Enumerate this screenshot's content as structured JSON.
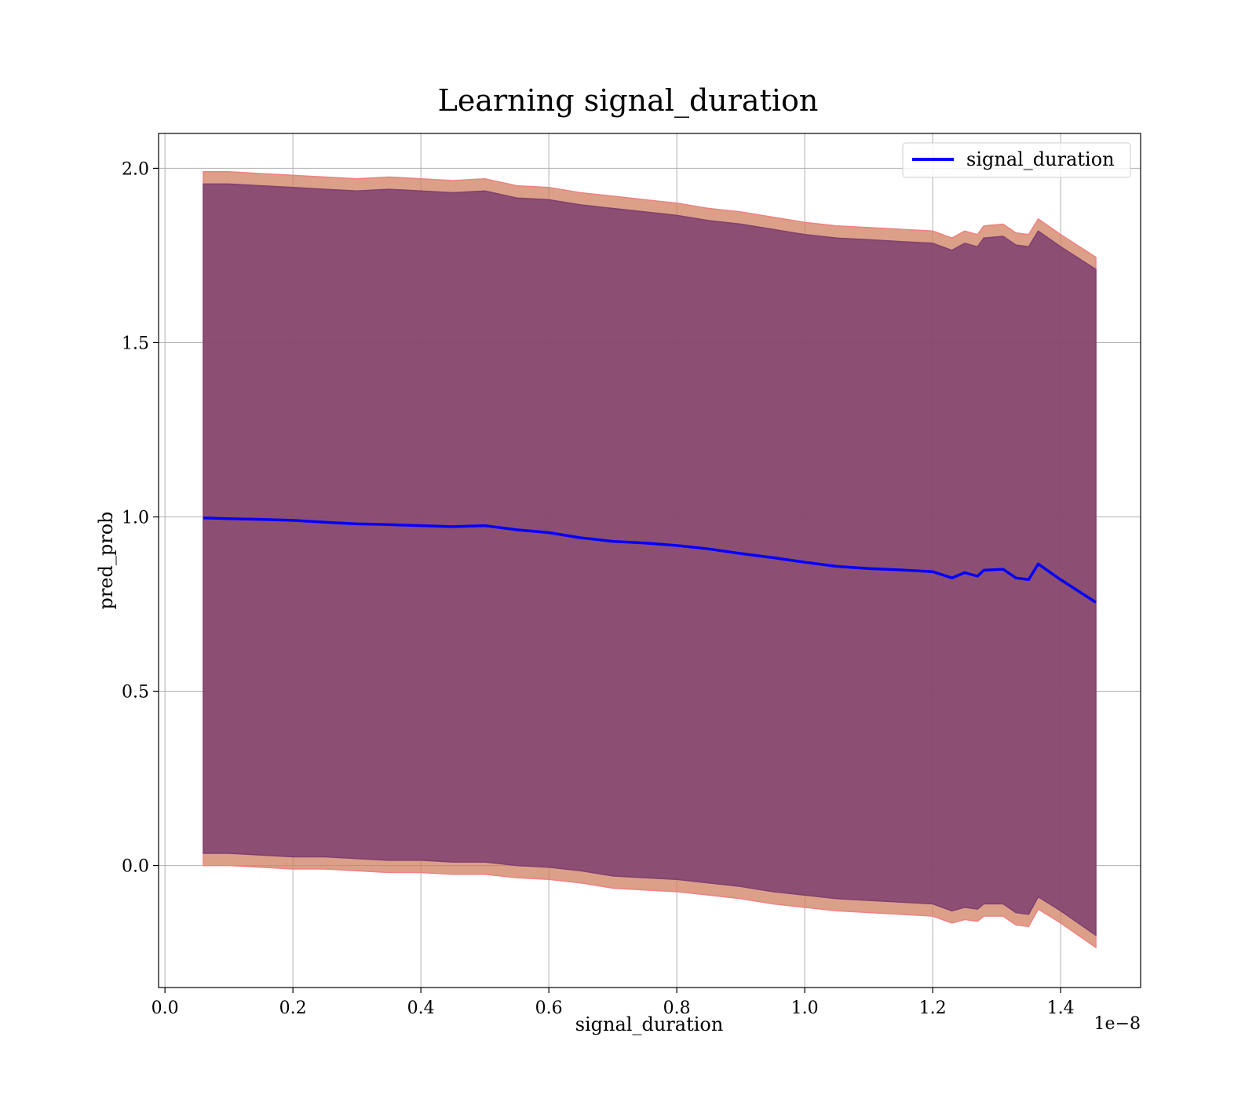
{
  "chart_data": {
    "type": "line",
    "title": "Learning signal_duration",
    "xlabel": "signal_duration",
    "ylabel": "pred_prob",
    "x_offset_label": "1e−8",
    "xlim": [
      -0.01,
      1.525
    ],
    "ylim": [
      -0.35,
      2.1
    ],
    "x_ticks": [
      0.0,
      0.2,
      0.4,
      0.6,
      0.8,
      1.0,
      1.2,
      1.4
    ],
    "x_tick_labels": [
      "0.0",
      "0.2",
      "0.4",
      "0.6",
      "0.8",
      "1.0",
      "1.2",
      "1.4"
    ],
    "y_ticks": [
      0.0,
      0.5,
      1.0,
      1.5,
      2.0
    ],
    "y_tick_labels": [
      "0.0",
      "0.5",
      "1.0",
      "1.5",
      "2.0"
    ],
    "grid": true,
    "legend_position": "top-right",
    "x": [
      0.06,
      0.1,
      0.15,
      0.2,
      0.25,
      0.3,
      0.35,
      0.4,
      0.45,
      0.5,
      0.55,
      0.6,
      0.65,
      0.7,
      0.75,
      0.8,
      0.85,
      0.9,
      0.95,
      1.0,
      1.05,
      1.1,
      1.15,
      1.2,
      1.23,
      1.25,
      1.27,
      1.28,
      1.31,
      1.33,
      1.35,
      1.365,
      1.4,
      1.455
    ],
    "series": [
      {
        "name": "signal_duration",
        "color": "#0000ff",
        "values": [
          0.997,
          0.995,
          0.993,
          0.99,
          0.985,
          0.98,
          0.978,
          0.975,
          0.972,
          0.975,
          0.963,
          0.955,
          0.94,
          0.93,
          0.925,
          0.918,
          0.908,
          0.895,
          0.883,
          0.87,
          0.858,
          0.852,
          0.848,
          0.843,
          0.825,
          0.84,
          0.83,
          0.847,
          0.85,
          0.825,
          0.82,
          0.865,
          0.82,
          0.755
        ]
      }
    ],
    "bands": [
      {
        "color": "#d08060",
        "edge_color": "#f08080",
        "upper": [
          1.99,
          1.99,
          1.985,
          1.98,
          1.975,
          1.97,
          1.975,
          1.97,
          1.965,
          1.97,
          1.95,
          1.945,
          1.93,
          1.92,
          1.91,
          1.9,
          1.885,
          1.875,
          1.86,
          1.845,
          1.835,
          1.83,
          1.825,
          1.82,
          1.8,
          1.82,
          1.81,
          1.835,
          1.84,
          1.815,
          1.81,
          1.855,
          1.81,
          1.745
        ],
        "lower": [
          0.0,
          0.0,
          -0.005,
          -0.01,
          -0.01,
          -0.015,
          -0.02,
          -0.02,
          -0.025,
          -0.025,
          -0.035,
          -0.04,
          -0.05,
          -0.065,
          -0.07,
          -0.075,
          -0.085,
          -0.095,
          -0.11,
          -0.12,
          -0.13,
          -0.135,
          -0.14,
          -0.145,
          -0.165,
          -0.155,
          -0.16,
          -0.145,
          -0.145,
          -0.17,
          -0.175,
          -0.125,
          -0.165,
          -0.235
        ]
      },
      {
        "color": "#7f4070",
        "edge_color": "#7f4070",
        "upper": [
          1.955,
          1.955,
          1.95,
          1.945,
          1.94,
          1.935,
          1.94,
          1.935,
          1.93,
          1.935,
          1.915,
          1.91,
          1.895,
          1.885,
          1.875,
          1.865,
          1.85,
          1.84,
          1.825,
          1.81,
          1.8,
          1.795,
          1.79,
          1.785,
          1.765,
          1.785,
          1.775,
          1.8,
          1.805,
          1.78,
          1.775,
          1.82,
          1.775,
          1.71
        ],
        "lower": [
          0.035,
          0.035,
          0.03,
          0.025,
          0.025,
          0.02,
          0.015,
          0.015,
          0.01,
          0.01,
          0.0,
          -0.005,
          -0.015,
          -0.03,
          -0.035,
          -0.04,
          -0.05,
          -0.06,
          -0.075,
          -0.085,
          -0.095,
          -0.1,
          -0.105,
          -0.11,
          -0.13,
          -0.12,
          -0.125,
          -0.11,
          -0.11,
          -0.135,
          -0.14,
          -0.09,
          -0.13,
          -0.2
        ]
      }
    ]
  }
}
